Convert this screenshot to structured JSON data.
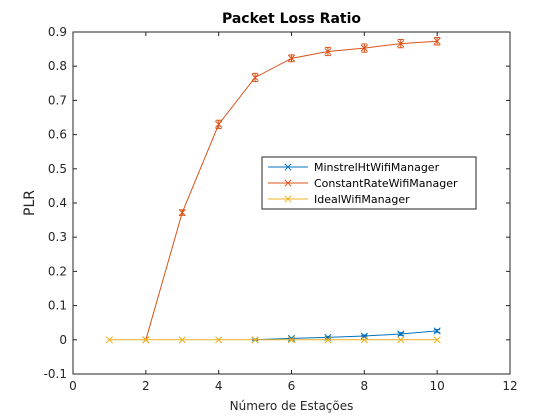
{
  "chart_data": {
    "type": "line",
    "title": "Packet Loss Ratio",
    "xlabel": "Número de Estações",
    "ylabel": "PLR",
    "xlim": [
      0,
      12
    ],
    "ylim": [
      -0.1,
      0.9
    ],
    "xticks": [
      0,
      2,
      4,
      6,
      8,
      10,
      12
    ],
    "yticks": [
      -0.1,
      0,
      0.1,
      0.2,
      0.3,
      0.4,
      0.5,
      0.6,
      0.7,
      0.8,
      0.9
    ],
    "xtick_labels": [
      "0",
      "2",
      "4",
      "6",
      "8",
      "10",
      "12"
    ],
    "ytick_labels": [
      "-0.1",
      "0",
      "0.1",
      "0.2",
      "0.3",
      "0.4",
      "0.5",
      "0.6",
      "0.7",
      "0.8",
      "0.9"
    ],
    "grid": false,
    "legend_position": "center-right",
    "series": [
      {
        "name": "MinstrelHtWifiManager",
        "color": "#0072BD",
        "marker": "x",
        "x": [
          5,
          6,
          7,
          8,
          9,
          10
        ],
        "y": [
          0.0,
          0.004,
          0.007,
          0.011,
          0.017,
          0.026
        ],
        "err": [
          0.002,
          0.002,
          0.003,
          0.003,
          0.004,
          0.004
        ]
      },
      {
        "name": "ConstantRateWifiManager",
        "color": "#D95319",
        "marker": "x",
        "x": [
          2,
          3,
          4,
          5,
          6,
          7,
          8,
          9,
          10
        ],
        "y": [
          0.0,
          0.372,
          0.63,
          0.767,
          0.823,
          0.843,
          0.853,
          0.866,
          0.873
        ],
        "err": [
          0.0,
          0.008,
          0.012,
          0.012,
          0.01,
          0.012,
          0.012,
          0.012,
          0.011
        ]
      },
      {
        "name": "IdealWifiManager",
        "color": "#EDB120",
        "marker": "x",
        "x": [
          1,
          2,
          3,
          4,
          5,
          6,
          7,
          8,
          9,
          10
        ],
        "y": [
          0,
          0,
          0,
          0,
          0,
          0,
          0,
          0,
          0,
          0
        ],
        "err": [
          0,
          0,
          0,
          0,
          0,
          0,
          0,
          0,
          0,
          0
        ]
      }
    ]
  }
}
